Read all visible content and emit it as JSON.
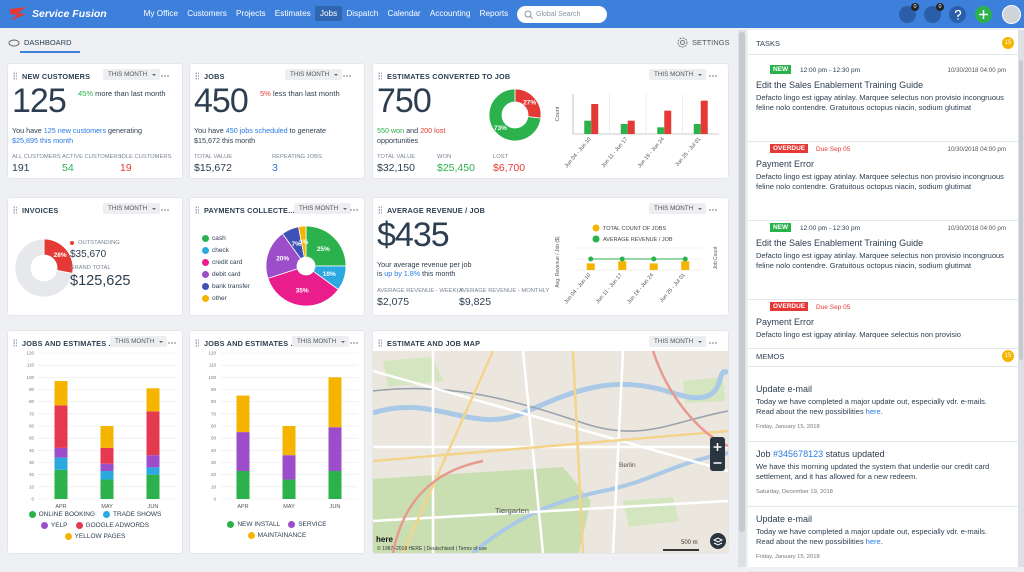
{
  "nav": {
    "brand": "Service Fusion",
    "items": [
      "My Office",
      "Customers",
      "Projects",
      "Estimates",
      "Jobs",
      "Dispatch",
      "Calendar",
      "Accounting",
      "Reports"
    ],
    "search": "Global Search",
    "badges": [
      "0",
      "0"
    ]
  },
  "toolbar": {
    "tab": "DASHBOARD",
    "settings": "SETTINGS"
  },
  "widgets": {
    "new_customers": {
      "title": "NEW CUSTOMERS",
      "period": "THIS MONTH",
      "value": "125",
      "change": "45%",
      "change_text": "more than last month",
      "summary": [
        "You have",
        "125 new customers",
        "generating",
        "$25,895 this month"
      ],
      "stats": [
        {
          "label": "ALL CUSTOMERS",
          "value": "191"
        },
        {
          "label": "ACTIVE CUSTOMERS",
          "value": "54"
        },
        {
          "label": "IDLE CUSTOMERS",
          "value": "19"
        }
      ]
    },
    "jobs": {
      "title": "JOBS",
      "period": "THIS MONTH",
      "value": "450",
      "change": "5%",
      "change_text": "less than last month",
      "summary": [
        "You have",
        "450 jobs scheduled",
        "to generate",
        "$15,672 this month"
      ],
      "stats": [
        {
          "label": "TOTAL VALUE",
          "value": "$15,672"
        },
        {
          "label": "REPEATING JOBS",
          "value": "3"
        }
      ]
    },
    "estimates": {
      "title": "ESTIMATES CONVERTED TO JOB",
      "period": "THIS MONTH",
      "value": "750",
      "summary": [
        "550 won",
        "and",
        "200 lost",
        "opportunities"
      ],
      "stats": [
        {
          "label": "TOTAL VALUE",
          "value": "$32,150"
        },
        {
          "label": "WON",
          "value": "$25,450"
        },
        {
          "label": "LOST",
          "value": "$6,700"
        }
      ],
      "donut": {
        "type": "pie",
        "values": [
          27,
          73
        ],
        "value_labels": [
          "27%",
          "73%"
        ],
        "colors": [
          "#e53935",
          "#2bb24c"
        ]
      },
      "bars": {
        "type": "bar",
        "y_label": "Count",
        "categories": [
          "Jun 04 - Jun 10",
          "Jun 11 - Jun 17",
          "Jun 18 - Jun 24",
          "Jun 25 - Jul 01"
        ],
        "ylim": [
          0,
          12
        ],
        "series": [
          {
            "color": "#2bb24c",
            "values": [
              4,
              3,
              2,
              3
            ]
          },
          {
            "color": "#e53935",
            "values": [
              9,
              4,
              7,
              10
            ]
          }
        ]
      }
    },
    "invoices": {
      "title": "INVOICES",
      "period": "THIS MONTH",
      "donut": {
        "type": "pie",
        "values": [
          28,
          72
        ],
        "value_labels": [
          "28%",
          null
        ],
        "colors": [
          "#e53935",
          "#e6e8eb"
        ]
      },
      "outstanding_label": "OUTSTANDING",
      "outstanding": "$35,670",
      "total_label": "GRAND TOTAL",
      "total": "$125,625"
    },
    "payments": {
      "title": "PAYMENTS COLLECTE...",
      "period": "THIS MONTH",
      "pie": {
        "type": "pie",
        "categories": [
          "cash",
          "check",
          "credit card",
          "debit card",
          "bank transfer",
          "other"
        ],
        "values": [
          25,
          10,
          35,
          20,
          7,
          3
        ],
        "value_labels": [
          "25%",
          "10%",
          "35%",
          "20%",
          "7%",
          "3%"
        ],
        "colors": [
          "#2bb24c",
          "#29a9e0",
          "#e91e8c",
          "#9b4dca",
          "#3f51b5",
          "#f5b400"
        ]
      }
    },
    "avg_revenue": {
      "title": "AVERAGE REVENUE / JOB",
      "period": "THIS MONTH",
      "value": "$435",
      "summary": [
        "Your average revenue per job",
        "is",
        "up by 1.8%",
        "this month"
      ],
      "stats": [
        {
          "label": "AVERAGE REVENUE - WEEKLY",
          "value": "$2,075"
        },
        {
          "label": "AVERAGE REVENUE - MONTHLY",
          "value": "$9,825"
        }
      ],
      "chart": {
        "type": "bar",
        "y_label": "Avg. Revenue / Job ($)",
        "y2_label": "Job Count",
        "categories": [
          "Jun 04 - Jun 10",
          "Jun 11 - Jun 17",
          "Jun 18 - Jun 24",
          "Jun 25 - Jul 01"
        ],
        "ylim": [
          0,
          10
        ],
        "y2lim": [
          0,
          10
        ],
        "series": [
          {
            "name": "TOTAL COUNT OF JOBS",
            "type": "bar",
            "color": "#f5b400",
            "values": [
              3,
              4,
              3,
              4
            ]
          },
          {
            "name": "AVERAGE REVENUE / JOB",
            "type": "line",
            "axis": "y2",
            "color": "#2bb24c",
            "values": [
              5,
              5,
              5,
              5
            ]
          }
        ]
      }
    },
    "sources": {
      "title": "JOBS AND ESTIMATES ...",
      "period": "THIS MONTH",
      "chart": {
        "type": "bar",
        "stacked": true,
        "categories": [
          "APR",
          "MAY",
          "JUN"
        ],
        "ylim": [
          0,
          120
        ],
        "yticks": [
          0,
          10,
          20,
          30,
          40,
          50,
          60,
          70,
          80,
          90,
          100,
          110,
          120
        ],
        "grid": true,
        "series": [
          {
            "name": "ONLINE BOOKING",
            "color": "#2bb24c",
            "values": [
              24,
              16,
              20
            ]
          },
          {
            "name": "TRADE SHOWS",
            "color": "#29a9e0",
            "values": [
              10,
              7,
              6
            ]
          },
          {
            "name": "YELP",
            "color": "#9b4dca",
            "values": [
              8,
              6,
              10
            ]
          },
          {
            "name": "GOOGLE ADWORDS",
            "color": "#e53950",
            "values": [
              35,
              13,
              36
            ]
          },
          {
            "name": "YELLOW PAGES",
            "color": "#f5b400",
            "values": [
              20,
              18,
              19
            ]
          }
        ]
      }
    },
    "job_types": {
      "title": "JOBS AND ESTIMATES ...",
      "period": "THIS MONTH",
      "chart": {
        "type": "bar",
        "stacked": true,
        "categories": [
          "APR",
          "MAY",
          "JUN"
        ],
        "ylim": [
          0,
          120
        ],
        "yticks": [
          0,
          10,
          20,
          30,
          40,
          50,
          60,
          70,
          80,
          90,
          100,
          110,
          120
        ],
        "grid": true,
        "series": [
          {
            "name": "NEW INSTALL",
            "color": "#2bb24c",
            "values": [
              23,
              16,
              23
            ]
          },
          {
            "name": "SERVICE",
            "color": "#9b4dca",
            "values": [
              32,
              20,
              36
            ]
          },
          {
            "name": "MAINTAINANCE",
            "color": "#f5b400",
            "values": [
              30,
              24,
              41
            ]
          }
        ]
      }
    },
    "map": {
      "title": "ESTIMATE AND JOB MAP",
      "period": "THIS MONTH",
      "labels": [
        "Tiergarten",
        "Berlin"
      ],
      "scale": "500 m",
      "logo": "here",
      "attribution": "© 1987–2018 HERE | Deutschland | Terms of use"
    }
  },
  "tasks": {
    "title": "TASKS",
    "count": "15",
    "items": [
      {
        "tag": "NEW",
        "time": "12:00 pm - 12:30 pm",
        "date": "10/30/2018 04:00 pm",
        "title": "Edit the Sales Enablement Training Guide",
        "body": "Defacto lingo est igpay atinlay. Marquee selectus non provisio incongruous feline nolo contendre. Gratuitous octopus niacin, sodium glutimat"
      },
      {
        "tag": "OVERDUE",
        "due": "Due Sep 05",
        "date": "10/30/2018 04:00 pm",
        "title": "Payment Error",
        "body": "Defacto lingo est igpay atinlay. Marquee selectus non provisio incongruous feline nolo contendre. Gratuitous octopus niacin, sodium glutimat"
      },
      {
        "tag": "NEW",
        "time": "12:00 pm - 12:30 pm",
        "date": "10/30/2018 04:00 pm",
        "title": "Edit the Sales Enablement Training Guide",
        "body": "Defacto lingo est igpay atinlay. Marquee selectus non provisio incongruous feline nolo contendre. Gratuitous octopus niacin, sodium glutimat"
      },
      {
        "tag": "OVERDUE",
        "due": "Due Sep 05",
        "title": "Payment Error",
        "body": "Defacto lingo est igpay atinlay. Marquee selectus non provisio"
      }
    ]
  },
  "memos": {
    "title": "MEMOS",
    "count": "15",
    "items": [
      {
        "title": "Update e-mail",
        "body": "Today we have completed a major update out, especially vdr. e-mails. Read about the new possibilities",
        "body_link": "here",
        "body_end": ".",
        "date": "Friday, January 15, 2018"
      },
      {
        "title": "Job",
        "link": "#345678123",
        "title_end": "status updated",
        "body": "We have this morning updated the system that underlie our credit card settlement, and it has allowed for a new redeem.",
        "date": "Saturday, December 19, 2018"
      },
      {
        "title": "Update e-mail",
        "body": "Today we have completed a major update out, especially vdr. e-mails. Read about the new possibilities",
        "body_link": "here",
        "body_end": ".",
        "date": "Friday, January 15, 2018"
      }
    ]
  }
}
